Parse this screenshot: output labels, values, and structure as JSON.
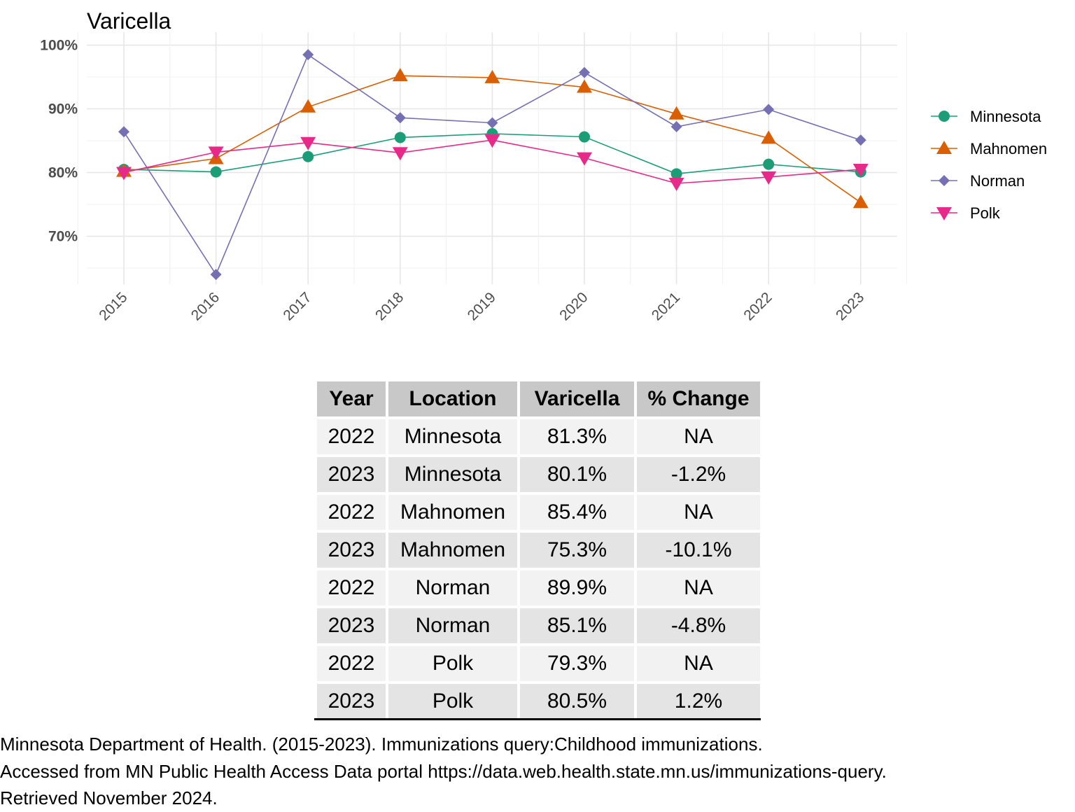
{
  "chart_data": {
    "type": "line",
    "title": "Varicella",
    "xlabel": "",
    "ylabel": "",
    "x": [
      "2015",
      "2016",
      "2017",
      "2018",
      "2019",
      "2020",
      "2021",
      "2022",
      "2023"
    ],
    "ylim": [
      62.5,
      101
    ],
    "yticks": [
      70,
      80,
      90,
      100
    ],
    "ytick_labels": [
      "70%",
      "80%",
      "90%",
      "100%"
    ],
    "grid": true,
    "legend_position": "right",
    "series": [
      {
        "name": "Minnesota",
        "color": "#1b9e77",
        "marker": "circle",
        "values": [
          80.5,
          80.1,
          82.5,
          85.5,
          86.1,
          85.6,
          79.8,
          81.3,
          80.1
        ]
      },
      {
        "name": "Mahnomen",
        "color": "#d95f02",
        "marker": "triangle-up",
        "values": [
          80.2,
          82.2,
          90.3,
          95.2,
          94.9,
          93.4,
          89.2,
          85.4,
          75.3
        ]
      },
      {
        "name": "Norman",
        "color": "#7570b3",
        "marker": "diamond",
        "values": [
          86.4,
          64.0,
          98.5,
          88.6,
          87.8,
          95.7,
          87.2,
          89.9,
          85.1
        ]
      },
      {
        "name": "Polk",
        "color": "#e7298a",
        "marker": "triangle-down",
        "values": [
          80.0,
          83.2,
          84.7,
          83.1,
          85.1,
          82.3,
          78.3,
          79.3,
          80.5
        ]
      }
    ]
  },
  "table": {
    "headers": [
      "Year",
      "Location",
      "Varicella",
      "% Change"
    ],
    "rows": [
      [
        "2022",
        "Minnesota",
        "81.3%",
        "NA"
      ],
      [
        "2023",
        "Minnesota",
        "80.1%",
        "-1.2%"
      ],
      [
        "2022",
        "Mahnomen",
        "85.4%",
        "NA"
      ],
      [
        "2023",
        "Mahnomen",
        "75.3%",
        "-10.1%"
      ],
      [
        "2022",
        "Norman",
        "89.9%",
        "NA"
      ],
      [
        "2023",
        "Norman",
        "85.1%",
        "-4.8%"
      ],
      [
        "2022",
        "Polk",
        "79.3%",
        "NA"
      ],
      [
        "2023",
        "Polk",
        "80.5%",
        "1.2%"
      ]
    ]
  },
  "footer": {
    "line1": "Minnesota Department of Health. (2015-2023). Immunizations query:Childhood immunizations.",
    "line2": "Accessed from MN Public Health Access Data portal https://data.web.health.state.mn.us/immunizations-query.",
    "line3": "Retrieved November 2024."
  }
}
